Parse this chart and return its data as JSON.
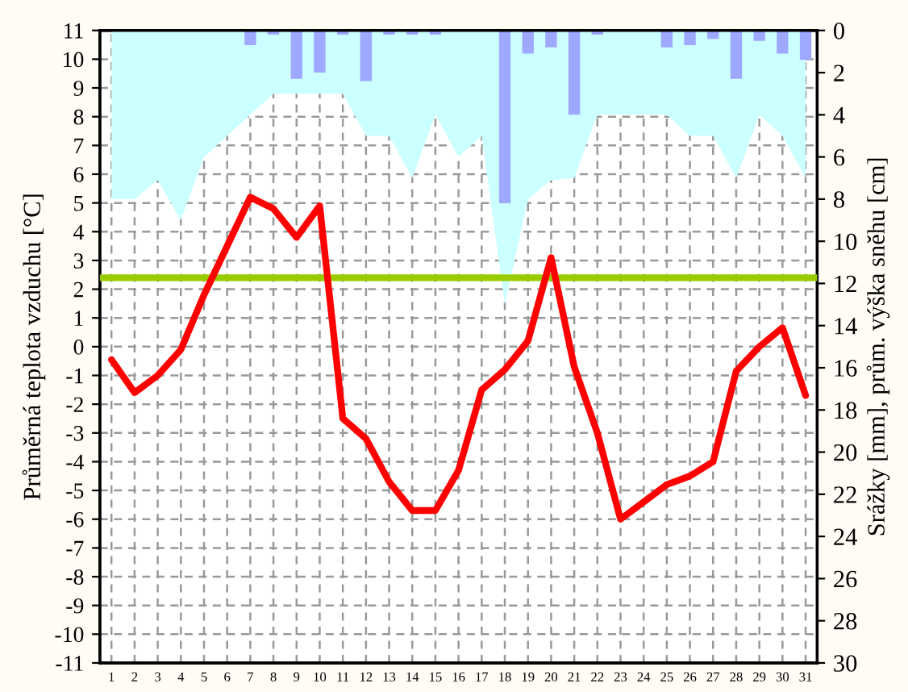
{
  "chart_data": {
    "type": "line",
    "categories": [
      "1",
      "2",
      "3",
      "4",
      "5",
      "6",
      "7",
      "8",
      "9",
      "10",
      "11",
      "12",
      "13",
      "14",
      "15",
      "16",
      "17",
      "18",
      "19",
      "20",
      "21",
      "22",
      "23",
      "24",
      "25",
      "26",
      "27",
      "28",
      "29",
      "30",
      "31"
    ],
    "ylabel": "Průměrná teplota vzduchu [°C]",
    "y2label": "Srážky [mm], prům. výška sněhu [cm]",
    "ylim": [
      -11,
      11
    ],
    "yticks": [
      -11,
      -10,
      -9,
      -8,
      -7,
      -6,
      -5,
      -4,
      -3,
      -2,
      -1,
      0,
      1,
      2,
      3,
      4,
      5,
      6,
      7,
      8,
      9,
      10,
      11
    ],
    "y2lim": [
      30,
      0
    ],
    "y2ticks": [
      0,
      2,
      4,
      6,
      8,
      10,
      12,
      14,
      16,
      18,
      20,
      22,
      24,
      26,
      28,
      30
    ],
    "grid": true,
    "series": [
      {
        "type": "area",
        "axis": "y2",
        "color": "#ccffff",
        "values": [
          8.0,
          8.0,
          7.1,
          9.0,
          6.0,
          5.0,
          4.0,
          3.0,
          3.0,
          3.0,
          3.0,
          5.0,
          5.0,
          7.0,
          4.0,
          6.0,
          5.0,
          13.0,
          8.0,
          7.1,
          7.0,
          4.0,
          4.0,
          4.0,
          4.0,
          5.0,
          5.0,
          7.0,
          4.0,
          5.0,
          7.0
        ]
      },
      {
        "type": "bar",
        "axis": "y2",
        "color": "#9fa8ff",
        "values": [
          null,
          null,
          null,
          null,
          null,
          null,
          0.7,
          0.2,
          2.3,
          2.0,
          0.2,
          2.4,
          0.2,
          0.2,
          0.2,
          null,
          null,
          8.2,
          1.1,
          0.8,
          4.0,
          0.2,
          null,
          null,
          0.8,
          0.7,
          0.4,
          2.3,
          0.5,
          1.1,
          1.4
        ]
      },
      {
        "axis": "y",
        "color": "#ff0000",
        "values": [
          -0.45,
          -1.6,
          -1.0,
          -0.1,
          1.8,
          3.5,
          5.2,
          4.8,
          3.8,
          4.9,
          -2.5,
          -3.2,
          -4.7,
          -5.7,
          -5.7,
          -4.3,
          -1.5,
          -0.8,
          0.2,
          3.1,
          -0.7,
          -3.0,
          -6.0,
          -5.4,
          -4.8,
          -4.5,
          -4.0,
          -0.85,
          0.0,
          0.66,
          -1.7
        ]
      }
    ],
    "ref_lines": [
      {
        "axis": "y",
        "value": 2.4,
        "color": "#99cc00",
        "line_style": "solid"
      }
    ]
  }
}
